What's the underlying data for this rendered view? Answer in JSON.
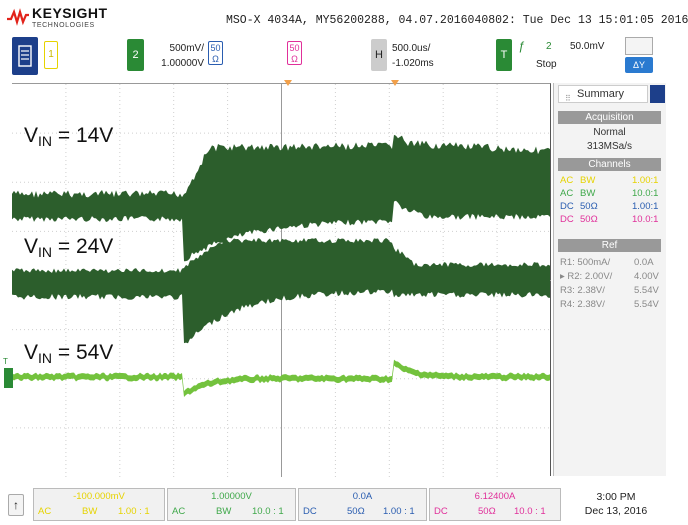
{
  "header": {
    "brand": "KEYSIGHT",
    "brand_sub": "TECHNOLOGIES",
    "info_line": "MSO-X 4034A, MY56200288, 04.07.2016040802: Tue Dec 13 15:01:05 2016"
  },
  "controls": {
    "ch1_label": "1",
    "ch2_label": "2",
    "ch2_scale": "500mV/",
    "ch2_offset": "1.00000V",
    "ch2_impedance_top": "50",
    "ch2_impedance_bot": "Ω",
    "ch3_impedance_top": "50",
    "ch3_impedance_bot": "Ω",
    "h_label": "H",
    "h_timebase": "500.0us/",
    "h_delay": "-1.020ms",
    "t_label": "T",
    "trig_slope": "ƒ",
    "trig_source": "2",
    "trig_level": "50.0mV",
    "run_state": "Stop",
    "delta_icon_label": "ΔY"
  },
  "screen": {
    "labels": [
      {
        "main": "V",
        "sub": "IN",
        "rest": " = 14V"
      },
      {
        "main": "V",
        "sub": "IN",
        "rest": " = 24V"
      },
      {
        "main": "V",
        "sub": "IN",
        "rest": " = 54V"
      }
    ],
    "ground_marker": "T",
    "colors": {
      "trace_dark": "#2c5e2c",
      "trace_light": "#73c23d",
      "grid": "#cfcfcf"
    }
  },
  "panel": {
    "tab_label": "Summary",
    "acquisition_head": "Acquisition",
    "acq_mode": "Normal",
    "acq_rate": "313MSa/s",
    "channels_head": "Channels",
    "channels": [
      {
        "coupling": "AC",
        "bw": "BW",
        "ratio": "1.00:1",
        "color": "#e6d300"
      },
      {
        "coupling": "AC",
        "bw": "BW",
        "ratio": "10.0:1",
        "color": "#3fa84a"
      },
      {
        "coupling": "DC",
        "bw": "50Ω",
        "ratio": "1.00:1",
        "color": "#2a5db0"
      },
      {
        "coupling": "DC",
        "bw": "50Ω",
        "ratio": "10.0:1",
        "color": "#e0309a"
      }
    ],
    "ref_head": "Ref",
    "refs": [
      {
        "name": "R1: 500mA/",
        "value": "0.0A"
      },
      {
        "name": "▸ R2: 2.00V/",
        "value": "4.00V"
      },
      {
        "name": "R3: 2.38V/",
        "value": "5.54V"
      },
      {
        "name": "R4: 2.38V/",
        "value": "5.54V"
      }
    ]
  },
  "bottom": {
    "up_icon": "↑",
    "cells": [
      {
        "value": "-100.000mV",
        "a": "AC",
        "b": "BW",
        "c": "1.00 : 1",
        "color": "#e6d300"
      },
      {
        "value": "1.00000V",
        "a": "AC",
        "b": "BW",
        "c": "10.0 : 1",
        "color": "#3fa84a"
      },
      {
        "value": "0.0A",
        "a": "DC",
        "b": "50Ω",
        "c": "1.00 : 1",
        "color": "#2a5db0"
      },
      {
        "value": "6.12400A",
        "a": "DC",
        "b": "50Ω",
        "c": "10.0 : 1",
        "color": "#e0309a"
      }
    ],
    "time": "3:00 PM",
    "date": "Dec 13, 2016"
  }
}
